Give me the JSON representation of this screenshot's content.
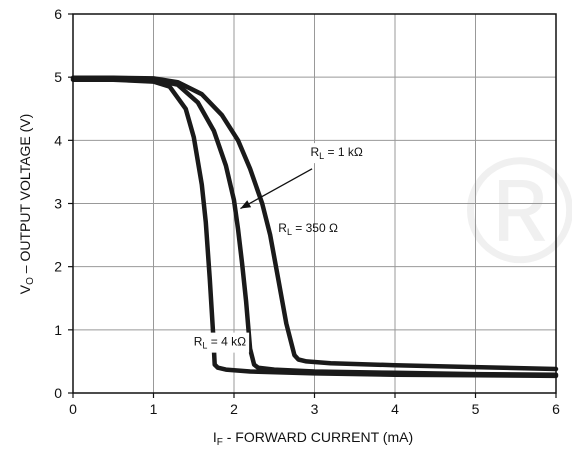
{
  "chart_data": {
    "type": "line",
    "xlabel": {
      "main": "I",
      "sub": "F",
      "rest": " - FORWARD CURRENT (mA)"
    },
    "ylabel": {
      "main": "V",
      "sub": "O",
      "rest": " – OUTPUT VOLTAGE (V)"
    },
    "xlim": [
      0,
      6
    ],
    "ylim": [
      0,
      6
    ],
    "xticks": [
      0,
      1,
      2,
      3,
      4,
      5,
      6
    ],
    "yticks": [
      0,
      1,
      2,
      3,
      4,
      5,
      6
    ],
    "grid": true,
    "watermark": "®",
    "series": [
      {
        "name": {
          "main": "R",
          "sub": "L",
          "rest": " = 4 kΩ"
        },
        "x": [
          0,
          0.5,
          1.0,
          1.2,
          1.4,
          1.5,
          1.6,
          1.65,
          1.7,
          1.74,
          1.76,
          1.8,
          1.9,
          2.2,
          3,
          4,
          5,
          6
        ],
        "y": [
          4.96,
          4.96,
          4.93,
          4.85,
          4.5,
          4.05,
          3.3,
          2.7,
          1.8,
          0.95,
          0.45,
          0.4,
          0.37,
          0.34,
          0.31,
          0.29,
          0.28,
          0.27
        ]
      },
      {
        "name": {
          "main": "R",
          "sub": "L",
          "rest": " = 1 kΩ"
        },
        "x": [
          0,
          0.5,
          1.0,
          1.3,
          1.55,
          1.75,
          1.9,
          2.0,
          2.05,
          2.1,
          2.15,
          2.2,
          2.25,
          2.3,
          2.5,
          3,
          4,
          5,
          6
        ],
        "y": [
          4.98,
          4.98,
          4.96,
          4.88,
          4.6,
          4.15,
          3.6,
          3.05,
          2.6,
          2.05,
          1.45,
          0.7,
          0.45,
          0.4,
          0.37,
          0.34,
          0.32,
          0.3,
          0.29
        ]
      },
      {
        "name": {
          "main": "R",
          "sub": "L",
          "rest": " = 350 Ω"
        },
        "x": [
          0,
          0.5,
          1.0,
          1.3,
          1.6,
          1.85,
          2.05,
          2.2,
          2.35,
          2.45,
          2.55,
          2.65,
          2.75,
          2.8,
          2.9,
          3.2,
          4,
          5,
          6
        ],
        "y": [
          4.99,
          4.99,
          4.98,
          4.92,
          4.73,
          4.4,
          4.0,
          3.55,
          3.0,
          2.5,
          1.8,
          1.1,
          0.6,
          0.53,
          0.5,
          0.47,
          0.44,
          0.41,
          0.38
        ]
      }
    ]
  }
}
